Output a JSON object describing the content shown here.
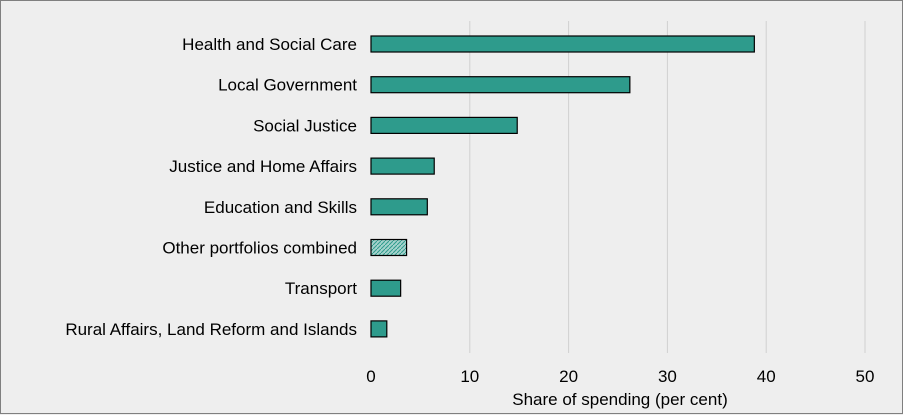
{
  "chart_data": {
    "type": "bar",
    "orientation": "horizontal",
    "categories": [
      "Health and Social Care",
      "Local Government",
      "Social Justice",
      "Justice and Home Affairs",
      "Education and Skills",
      "Other portfolios combined",
      "Transport",
      "Rural Affairs, Land Reform and Islands"
    ],
    "values": [
      38.8,
      26.2,
      14.8,
      6.4,
      5.7,
      3.6,
      3.0,
      1.6
    ],
    "highlight_category": "Other portfolios combined",
    "xlabel": "Share of spending (per cent)",
    "ylabel": "",
    "xlim": [
      0,
      50
    ],
    "xticks": [
      0,
      10,
      20,
      30,
      40,
      50
    ],
    "grid": "vertical",
    "colors": {
      "bar": "#2e9b8c",
      "bar_highlight": "#a6d3cd",
      "bar_outline": "#000000",
      "grid": "#d0d0d0",
      "background": "#eeeeee"
    }
  }
}
